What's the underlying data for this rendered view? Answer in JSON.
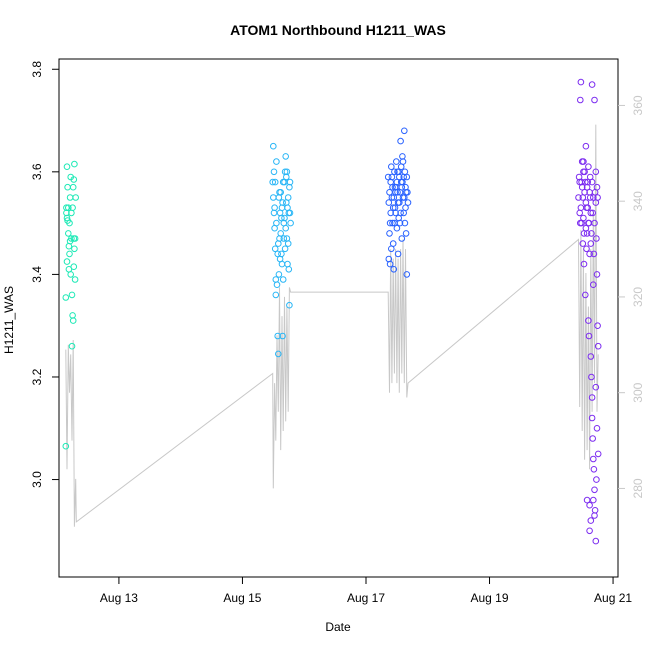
{
  "chart_data": {
    "type": "scatter",
    "title": "ATOM1 Northbound H1211_WAS",
    "xlabel": "Date",
    "ylabel": "H1211_WAS",
    "x_ticks": [
      "Aug 13",
      "Aug 15",
      "Aug 17",
      "Aug 19",
      "Aug 21"
    ],
    "x_tick_days": [
      13,
      15,
      17,
      19,
      21
    ],
    "xlim_days": [
      12.03,
      21.08
    ],
    "y_ticks": [
      "3.0",
      "3.2",
      "3.4",
      "3.6",
      "3.8"
    ],
    "y_tick_values": [
      3.0,
      3.2,
      3.4,
      3.6,
      3.8
    ],
    "ylim": [
      2.81,
      3.82
    ],
    "y2_ticks": [
      "280",
      "300",
      "320",
      "340",
      "360"
    ],
    "y2_tick_values": [
      280,
      300,
      320,
      340,
      360
    ],
    "y2lim": [
      261.5,
      369.7
    ],
    "grid": false,
    "legend": "none",
    "series": [
      {
        "color": "#1de9b6",
        "points": [
          [
            12.14,
            3.065
          ],
          [
            12.14,
            3.355
          ],
          [
            12.15,
            3.52
          ],
          [
            12.16,
            3.61
          ],
          [
            12.15,
            3.53
          ],
          [
            12.17,
            3.505
          ],
          [
            12.18,
            3.48
          ],
          [
            12.16,
            3.425
          ],
          [
            12.19,
            3.41
          ],
          [
            12.2,
            3.5
          ],
          [
            12.21,
            3.55
          ],
          [
            12.22,
            3.59
          ],
          [
            12.23,
            3.47
          ],
          [
            12.17,
            3.57
          ],
          [
            12.19,
            3.455
          ],
          [
            12.24,
            3.36
          ],
          [
            12.25,
            3.32
          ],
          [
            12.26,
            3.31
          ],
          [
            12.24,
            3.26
          ],
          [
            12.27,
            3.585
          ],
          [
            12.28,
            3.615
          ],
          [
            12.26,
            3.57
          ],
          [
            12.25,
            3.53
          ],
          [
            12.27,
            3.47
          ],
          [
            12.28,
            3.45
          ],
          [
            12.29,
            3.39
          ],
          [
            12.23,
            3.52
          ],
          [
            12.21,
            3.465
          ],
          [
            12.18,
            3.53
          ],
          [
            12.29,
            3.47
          ],
          [
            12.16,
            3.51
          ],
          [
            12.22,
            3.4
          ],
          [
            12.27,
            3.415
          ],
          [
            12.3,
            3.55
          ],
          [
            12.2,
            3.44
          ]
        ]
      },
      {
        "color": "#29b6f6",
        "points": [
          [
            15.49,
            3.58
          ],
          [
            15.5,
            3.65
          ],
          [
            15.51,
            3.6
          ],
          [
            15.52,
            3.49
          ],
          [
            15.53,
            3.45
          ],
          [
            15.54,
            3.39
          ],
          [
            15.55,
            3.62
          ],
          [
            15.5,
            3.55
          ],
          [
            15.52,
            3.53
          ],
          [
            15.56,
            3.38
          ],
          [
            15.54,
            3.36
          ],
          [
            15.57,
            3.28
          ],
          [
            15.58,
            3.245
          ],
          [
            15.59,
            3.4
          ],
          [
            15.6,
            3.47
          ],
          [
            15.61,
            3.52
          ],
          [
            15.62,
            3.56
          ],
          [
            15.63,
            3.44
          ],
          [
            15.64,
            3.42
          ],
          [
            15.65,
            3.28
          ],
          [
            15.66,
            3.39
          ],
          [
            15.67,
            3.5
          ],
          [
            15.68,
            3.58
          ],
          [
            15.69,
            3.6
          ],
          [
            15.7,
            3.63
          ],
          [
            15.71,
            3.54
          ],
          [
            15.72,
            3.47
          ],
          [
            15.73,
            3.53
          ],
          [
            15.74,
            3.46
          ],
          [
            15.75,
            3.41
          ],
          [
            15.76,
            3.34
          ],
          [
            15.77,
            3.52
          ],
          [
            15.55,
            3.5
          ],
          [
            15.58,
            3.46
          ],
          [
            15.6,
            3.56
          ],
          [
            15.62,
            3.48
          ],
          [
            15.64,
            3.53
          ],
          [
            15.66,
            3.58
          ],
          [
            15.68,
            3.51
          ],
          [
            15.7,
            3.49
          ],
          [
            15.72,
            3.6
          ],
          [
            15.74,
            3.55
          ],
          [
            15.76,
            3.57
          ],
          [
            15.57,
            3.44
          ],
          [
            15.63,
            3.51
          ],
          [
            15.69,
            3.45
          ],
          [
            15.51,
            3.52
          ],
          [
            15.53,
            3.58
          ],
          [
            15.59,
            3.55
          ],
          [
            15.61,
            3.43
          ],
          [
            15.65,
            3.54
          ],
          [
            15.67,
            3.47
          ],
          [
            15.71,
            3.59
          ],
          [
            15.73,
            3.42
          ],
          [
            15.75,
            3.52
          ],
          [
            15.77,
            3.58
          ],
          [
            15.78,
            3.5
          ]
        ]
      },
      {
        "color": "#2962ff",
        "points": [
          [
            17.36,
            3.59
          ],
          [
            17.37,
            3.54
          ],
          [
            17.38,
            3.48
          ],
          [
            17.39,
            3.42
          ],
          [
            17.4,
            3.58
          ],
          [
            17.41,
            3.61
          ],
          [
            17.42,
            3.55
          ],
          [
            17.43,
            3.5
          ],
          [
            17.44,
            3.46
          ],
          [
            17.45,
            3.41
          ],
          [
            17.46,
            3.6
          ],
          [
            17.47,
            3.57
          ],
          [
            17.48,
            3.52
          ],
          [
            17.49,
            3.62
          ],
          [
            17.5,
            3.49
          ],
          [
            17.51,
            3.56
          ],
          [
            17.52,
            3.44
          ],
          [
            17.53,
            3.6
          ],
          [
            17.54,
            3.54
          ],
          [
            17.55,
            3.5
          ],
          [
            17.56,
            3.66
          ],
          [
            17.57,
            3.58
          ],
          [
            17.58,
            3.47
          ],
          [
            17.59,
            3.63
          ],
          [
            17.6,
            3.55
          ],
          [
            17.61,
            3.52
          ],
          [
            17.62,
            3.68
          ],
          [
            17.63,
            3.6
          ],
          [
            17.64,
            3.57
          ],
          [
            17.65,
            3.48
          ],
          [
            17.66,
            3.4
          ],
          [
            17.67,
            3.56
          ],
          [
            17.38,
            3.56
          ],
          [
            17.4,
            3.52
          ],
          [
            17.42,
            3.59
          ],
          [
            17.44,
            3.53
          ],
          [
            17.46,
            3.5
          ],
          [
            17.48,
            3.56
          ],
          [
            17.5,
            3.58
          ],
          [
            17.52,
            3.54
          ],
          [
            17.54,
            3.59
          ],
          [
            17.56,
            3.52
          ],
          [
            17.58,
            3.57
          ],
          [
            17.6,
            3.62
          ],
          [
            17.62,
            3.55
          ],
          [
            17.64,
            3.53
          ],
          [
            17.66,
            3.59
          ],
          [
            17.39,
            3.5
          ],
          [
            17.43,
            3.57
          ],
          [
            17.47,
            3.53
          ],
          [
            17.51,
            3.6
          ],
          [
            17.55,
            3.56
          ],
          [
            17.59,
            3.58
          ],
          [
            17.63,
            3.5
          ],
          [
            17.41,
            3.45
          ],
          [
            17.45,
            3.55
          ],
          [
            17.53,
            3.51
          ],
          [
            17.57,
            3.61
          ],
          [
            17.61,
            3.59
          ],
          [
            17.65,
            3.56
          ],
          [
            17.37,
            3.43
          ],
          [
            17.49,
            3.57
          ],
          [
            17.68,
            3.54
          ]
        ]
      },
      {
        "color": "#7c2cf0",
        "points": [
          [
            20.44,
            3.55
          ],
          [
            20.45,
            3.59
          ],
          [
            20.46,
            3.52
          ],
          [
            20.47,
            3.74
          ],
          [
            20.48,
            3.775
          ],
          [
            20.49,
            3.5
          ],
          [
            20.5,
            3.62
          ],
          [
            20.51,
            3.46
          ],
          [
            20.52,
            3.6
          ],
          [
            20.53,
            3.42
          ],
          [
            20.54,
            3.56
          ],
          [
            20.55,
            3.36
          ],
          [
            20.56,
            3.65
          ],
          [
            20.57,
            3.53
          ],
          [
            20.58,
            3.48
          ],
          [
            20.59,
            3.58
          ],
          [
            20.6,
            3.31
          ],
          [
            20.61,
            3.28
          ],
          [
            20.62,
            3.44
          ],
          [
            20.63,
            3.55
          ],
          [
            20.64,
            3.24
          ],
          [
            20.65,
            3.2
          ],
          [
            20.66,
            3.12
          ],
          [
            20.67,
            3.08
          ],
          [
            20.68,
            3.04
          ],
          [
            20.69,
            3.02
          ],
          [
            20.7,
            2.98
          ],
          [
            20.71,
            2.94
          ],
          [
            20.72,
            2.88
          ],
          [
            20.73,
            3.0
          ],
          [
            20.74,
            3.1
          ],
          [
            20.75,
            3.3
          ],
          [
            20.76,
            3.26
          ],
          [
            20.66,
            3.77
          ],
          [
            20.7,
            3.74
          ],
          [
            20.72,
            3.6
          ],
          [
            20.74,
            3.4
          ],
          [
            20.58,
            2.96
          ],
          [
            20.62,
            2.95
          ],
          [
            20.64,
            2.92
          ],
          [
            20.68,
            2.96
          ],
          [
            20.7,
            2.93
          ],
          [
            20.46,
            3.58
          ],
          [
            20.48,
            3.53
          ],
          [
            20.5,
            3.57
          ],
          [
            20.52,
            3.51
          ],
          [
            20.54,
            3.6
          ],
          [
            20.56,
            3.54
          ],
          [
            20.58,
            3.57
          ],
          [
            20.6,
            3.5
          ],
          [
            20.62,
            3.56
          ],
          [
            20.64,
            3.52
          ],
          [
            20.66,
            3.58
          ],
          [
            20.68,
            3.55
          ],
          [
            20.7,
            3.5
          ],
          [
            20.72,
            3.54
          ],
          [
            20.74,
            3.57
          ],
          [
            20.47,
            3.5
          ],
          [
            20.51,
            3.55
          ],
          [
            20.55,
            3.58
          ],
          [
            20.59,
            3.53
          ],
          [
            20.63,
            3.59
          ],
          [
            20.67,
            3.52
          ],
          [
            20.71,
            3.56
          ],
          [
            20.75,
            3.55
          ],
          [
            20.53,
            3.48
          ],
          [
            20.57,
            3.45
          ],
          [
            20.61,
            3.5
          ],
          [
            20.65,
            3.48
          ],
          [
            20.69,
            3.44
          ],
          [
            20.73,
            3.47
          ],
          [
            20.49,
            3.58
          ],
          [
            20.52,
            3.62
          ],
          [
            20.56,
            3.49
          ],
          [
            20.6,
            3.61
          ],
          [
            20.64,
            3.46
          ],
          [
            20.68,
            3.38
          ],
          [
            20.72,
            3.18
          ],
          [
            20.76,
            3.05
          ],
          [
            20.62,
            2.9
          ],
          [
            20.66,
            3.16
          ]
        ]
      }
    ],
    "secondary_line": {
      "color": "#c8c8c8",
      "points": [
        [
          12.14,
          309
        ],
        [
          12.16,
          284
        ],
        [
          12.18,
          310
        ],
        [
          12.2,
          300
        ],
        [
          12.22,
          308
        ],
        [
          12.24,
          290
        ],
        [
          12.26,
          311
        ],
        [
          12.28,
          272
        ],
        [
          12.3,
          282
        ],
        [
          12.31,
          273
        ],
        [
          15.49,
          304
        ],
        [
          15.5,
          280
        ],
        [
          15.52,
          302
        ],
        [
          15.54,
          290
        ],
        [
          15.56,
          312
        ],
        [
          15.58,
          296
        ],
        [
          15.6,
          322
        ],
        [
          15.62,
          288
        ],
        [
          15.64,
          316
        ],
        [
          15.66,
          292
        ],
        [
          15.68,
          320
        ],
        [
          15.7,
          294
        ],
        [
          15.72,
          318
        ],
        [
          15.74,
          296
        ],
        [
          15.76,
          322
        ],
        [
          15.78,
          321
        ],
        [
          17.36,
          321
        ],
        [
          17.38,
          300
        ],
        [
          17.4,
          330
        ],
        [
          17.42,
          302
        ],
        [
          17.44,
          328
        ],
        [
          17.46,
          304
        ],
        [
          17.48,
          330
        ],
        [
          17.5,
          302
        ],
        [
          17.52,
          328
        ],
        [
          17.54,
          300
        ],
        [
          17.56,
          330
        ],
        [
          17.58,
          304
        ],
        [
          17.6,
          332
        ],
        [
          17.62,
          302
        ],
        [
          17.64,
          330
        ],
        [
          17.66,
          299
        ],
        [
          17.68,
          302
        ],
        [
          20.44,
          332
        ],
        [
          20.46,
          297
        ],
        [
          20.48,
          334
        ],
        [
          20.5,
          292
        ],
        [
          20.52,
          330
        ],
        [
          20.54,
          286
        ],
        [
          20.56,
          325
        ],
        [
          20.58,
          288
        ],
        [
          20.6,
          318
        ],
        [
          20.62,
          284
        ],
        [
          20.64,
          330
        ],
        [
          20.66,
          296
        ],
        [
          20.68,
          338
        ],
        [
          20.7,
          302
        ],
        [
          20.72,
          356
        ],
        [
          20.74,
          296
        ],
        [
          20.76,
          308
        ]
      ]
    }
  }
}
